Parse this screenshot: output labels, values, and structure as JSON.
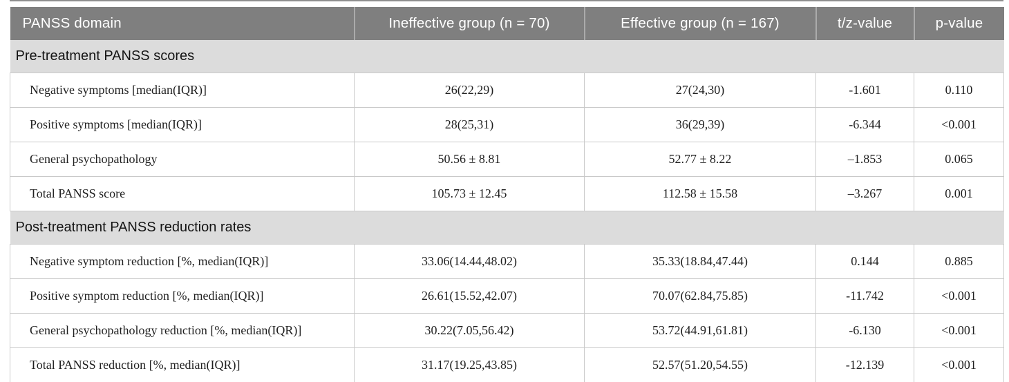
{
  "colors": {
    "header_bg": "#7f7f7f",
    "header_text": "#ffffff",
    "section_bg": "#dcdcdc",
    "row_border": "#c9c9c9",
    "data_text": "#1f1f1f"
  },
  "table": {
    "columns": {
      "domain": "PANSS domain",
      "ineffective": "Ineffective group (n = 70)",
      "effective": "Effective group (n = 167)",
      "tz": "t/z-value",
      "p": "p-value"
    },
    "sections": [
      {
        "title": "Pre-treatment PANSS scores",
        "rows": [
          {
            "label": "Negative symptoms [median(IQR)]",
            "ineffective": "26(22,29)",
            "effective": "27(24,30)",
            "tz": "-1.601",
            "p": "0.110"
          },
          {
            "label": "Positive symptoms [median(IQR)]",
            "ineffective": "28(25,31)",
            "effective": "36(29,39)",
            "tz": "-6.344",
            "p": "<0.001"
          },
          {
            "label": "General psychopathology",
            "ineffective": "50.56 ± 8.81",
            "effective": "52.77 ± 8.22",
            "tz": "–1.853",
            "p": "0.065"
          },
          {
            "label": "Total PANSS score",
            "ineffective": "105.73 ± 12.45",
            "effective": "112.58 ± 15.58",
            "tz": "–3.267",
            "p": "0.001"
          }
        ]
      },
      {
        "title": "Post-treatment PANSS reduction rates",
        "rows": [
          {
            "label": "Negative symptom reduction [%, median(IQR)]",
            "ineffective": "33.06(14.44,48.02)",
            "effective": "35.33(18.84,47.44)",
            "tz": "0.144",
            "p": "0.885"
          },
          {
            "label": "Positive symptom reduction [%, median(IQR)]",
            "ineffective": "26.61(15.52,42.07)",
            "effective": "70.07(62.84,75.85)",
            "tz": "-11.742",
            "p": "<0.001"
          },
          {
            "label": "General psychopathology reduction [%, median(IQR)]",
            "ineffective": "30.22(7.05,56.42)",
            "effective": "53.72(44.91,61.81)",
            "tz": "-6.130",
            "p": "<0.001"
          },
          {
            "label": "Total PANSS reduction [%, median(IQR)]",
            "ineffective": "31.17(19.25,43.85)",
            "effective": "52.57(51.20,54.55)",
            "tz": "-12.139",
            "p": "<0.001"
          }
        ]
      }
    ]
  }
}
